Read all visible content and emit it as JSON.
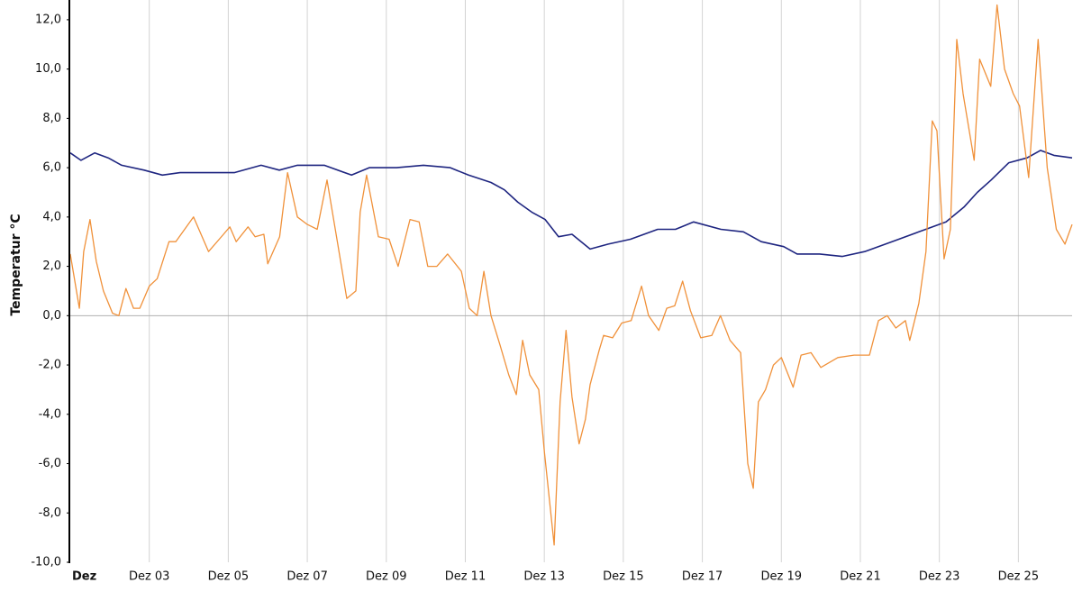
{
  "chart_data": {
    "type": "line",
    "ylabel": "Temperatur °C",
    "xlim": [
      1,
      26.36
    ],
    "xticks": [
      {
        "value": 1,
        "label": "Dez"
      },
      {
        "value": 3,
        "label": "Dez 03"
      },
      {
        "value": 5,
        "label": "Dez 05"
      },
      {
        "value": 7,
        "label": "Dez 07"
      },
      {
        "value": 9,
        "label": "Dez 09"
      },
      {
        "value": 11,
        "label": "Dez 11"
      },
      {
        "value": 13,
        "label": "Dez 13"
      },
      {
        "value": 15,
        "label": "Dez 15"
      },
      {
        "value": 17,
        "label": "Dez 17"
      },
      {
        "value": 19,
        "label": "Dez 19"
      },
      {
        "value": 21,
        "label": "Dez 21"
      },
      {
        "value": 23,
        "label": "Dez 23"
      },
      {
        "value": 25,
        "label": "Dez 25"
      }
    ],
    "ylim": [
      -10,
      12.8
    ],
    "yticks": [
      {
        "value": -10,
        "label": "-10,0"
      },
      {
        "value": -8,
        "label": "-8,0"
      },
      {
        "value": -6,
        "label": "-6,0"
      },
      {
        "value": -4,
        "label": "-4,0"
      },
      {
        "value": -2,
        "label": "-2,0"
      },
      {
        "value": 0,
        "label": "0,0"
      },
      {
        "value": 2,
        "label": "2,0"
      },
      {
        "value": 4,
        "label": "4,0"
      },
      {
        "value": 6,
        "label": "6,0"
      },
      {
        "value": 8,
        "label": "8,0"
      },
      {
        "value": 10,
        "label": "10,0"
      },
      {
        "value": 12,
        "label": "12,0"
      }
    ],
    "grid": true,
    "series": [
      {
        "color": "#1e2580",
        "x": [
          1.0,
          1.27,
          1.62,
          1.96,
          2.3,
          2.87,
          3.33,
          3.78,
          4.47,
          5.15,
          5.83,
          6.29,
          6.75,
          7.43,
          8.12,
          8.57,
          9.26,
          9.94,
          10.62,
          11.08,
          11.65,
          11.99,
          12.33,
          12.68,
          13.02,
          13.36,
          13.7,
          14.16,
          14.62,
          15.18,
          15.87,
          16.32,
          16.78,
          17.47,
          18.04,
          18.49,
          19.06,
          19.4,
          19.97,
          20.54,
          21.11,
          21.8,
          22.48,
          23.17,
          23.62,
          23.96,
          24.31,
          24.76,
          25.22,
          25.56,
          25.9,
          26.36
        ],
        "values": [
          6.6,
          6.3,
          6.6,
          6.4,
          6.1,
          5.9,
          5.7,
          5.8,
          5.8,
          5.8,
          6.1,
          5.9,
          6.1,
          6.1,
          5.7,
          6.0,
          6.0,
          6.1,
          6.0,
          5.7,
          5.4,
          5.1,
          4.6,
          4.2,
          3.9,
          3.2,
          3.3,
          2.7,
          2.9,
          3.1,
          3.5,
          3.5,
          3.8,
          3.5,
          3.4,
          3.0,
          2.8,
          2.5,
          2.5,
          2.4,
          2.6,
          3.0,
          3.4,
          3.8,
          4.4,
          5.0,
          5.5,
          6.2,
          6.4,
          6.7,
          6.5,
          6.4
        ]
      },
      {
        "color": "#f0913a",
        "x": [
          1.0,
          1.23,
          1.34,
          1.5,
          1.66,
          1.84,
          2.07,
          2.23,
          2.41,
          2.6,
          2.76,
          3.0,
          3.2,
          3.5,
          3.67,
          4.12,
          4.5,
          4.88,
          5.04,
          5.2,
          5.5,
          5.68,
          5.9,
          6.0,
          6.3,
          6.5,
          6.75,
          7.0,
          7.25,
          7.5,
          7.77,
          8.0,
          8.23,
          8.34,
          8.5,
          8.8,
          9.07,
          9.3,
          9.6,
          9.83,
          10.05,
          10.28,
          10.55,
          10.9,
          11.1,
          11.3,
          11.47,
          11.65,
          11.88,
          12.1,
          12.29,
          12.45,
          12.63,
          12.86,
          13.0,
          13.25,
          13.4,
          13.55,
          13.7,
          13.88,
          14.04,
          14.16,
          14.39,
          14.5,
          14.73,
          14.96,
          15.2,
          15.46,
          15.64,
          15.9,
          16.1,
          16.3,
          16.5,
          16.7,
          16.96,
          17.24,
          17.46,
          17.7,
          17.97,
          18.15,
          18.29,
          18.42,
          18.6,
          18.8,
          19.0,
          19.3,
          19.5,
          19.75,
          20.0,
          20.43,
          20.84,
          21.23,
          21.46,
          21.68,
          21.9,
          22.14,
          22.25,
          22.48,
          22.66,
          22.82,
          22.94,
          23.12,
          23.28,
          23.44,
          23.6,
          23.88,
          24.02,
          24.3,
          24.46,
          24.65,
          24.87,
          25.03,
          25.26,
          25.5,
          25.73,
          25.96,
          26.18,
          26.36
        ],
        "values": [
          2.5,
          0.3,
          2.6,
          3.9,
          2.2,
          1.0,
          0.1,
          0.0,
          1.1,
          0.3,
          0.3,
          1.2,
          1.5,
          3.0,
          3.0,
          4.0,
          2.6,
          3.3,
          3.6,
          3.0,
          3.6,
          3.2,
          3.3,
          2.1,
          3.2,
          5.8,
          4.0,
          3.7,
          3.5,
          5.5,
          2.9,
          0.7,
          1.0,
          4.2,
          5.7,
          3.2,
          3.1,
          2.0,
          3.9,
          3.8,
          2.0,
          2.0,
          2.5,
          1.8,
          0.3,
          0.0,
          1.8,
          0.0,
          -1.2,
          -2.4,
          -3.2,
          -1.0,
          -2.4,
          -3.0,
          -5.5,
          -9.3,
          -3.5,
          -0.6,
          -3.3,
          -5.2,
          -4.2,
          -2.8,
          -1.4,
          -0.8,
          -0.9,
          -0.3,
          -0.2,
          1.2,
          0.0,
          -0.6,
          0.3,
          0.4,
          1.4,
          0.2,
          -0.9,
          -0.8,
          0.0,
          -1.0,
          -1.5,
          -6.0,
          -7.0,
          -3.5,
          -3.0,
          -2.0,
          -1.7,
          -2.9,
          -1.6,
          -1.5,
          -2.1,
          -1.7,
          -1.6,
          -1.6,
          -0.2,
          0.0,
          -0.5,
          -0.2,
          -1.0,
          0.5,
          2.6,
          7.9,
          7.5,
          2.3,
          3.5,
          11.2,
          9.0,
          6.3,
          10.4,
          9.3,
          12.6,
          10.0,
          9.0,
          8.5,
          5.6,
          11.2,
          6.0,
          3.5,
          2.9,
          3.7
        ]
      }
    ]
  }
}
